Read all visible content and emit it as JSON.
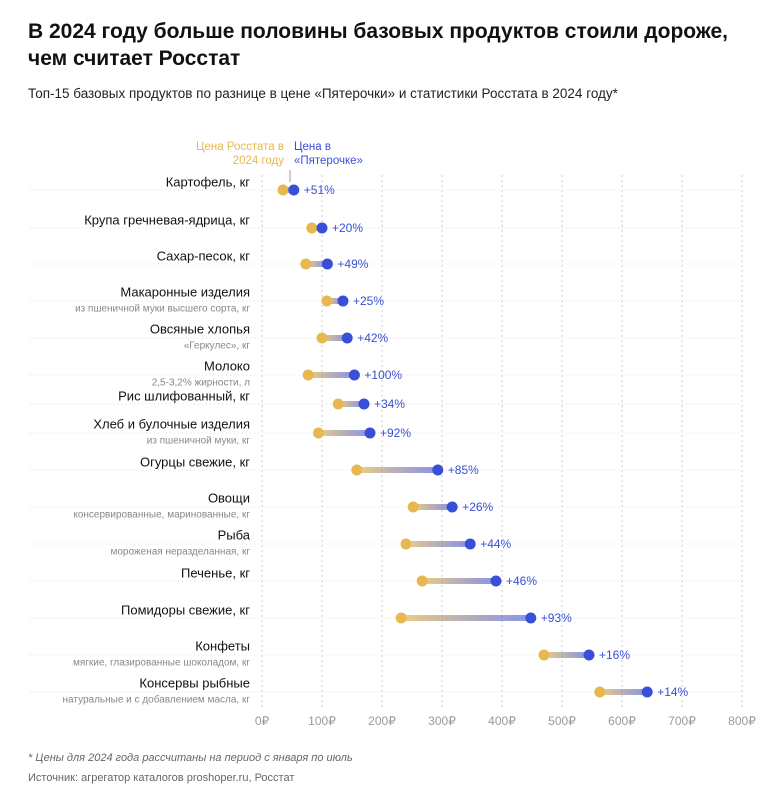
{
  "chart_data": {
    "type": "dumbbell",
    "title": "В 2024 году больше половины базовых продуктов стоили дороже, чем считает Росстат",
    "subtitle": "Топ-15 базовых продуктов по разнице в цене «Пятерочки» и статистики Росстата в 2024 году*",
    "categories": [
      "Картофель, кг",
      "Крупа гречневая-ядрица, кг",
      "Сахар-песок, кг",
      "Макаронные изделия",
      "Овсяные хлопья",
      "Молоко",
      "Рис шлифованный, кг",
      "Хлеб и булочные изделия",
      "Огурцы свежие, кг",
      "Овощи",
      "Рыба",
      "Печенье, кг",
      "Помидоры свежие, кг",
      "Конфеты",
      "Консервы рыбные"
    ],
    "subcategories": [
      null,
      null,
      null,
      "из пшеничной муки высшего сорта, кг",
      "«Геркулес», кг",
      "2,5-3,2% жирности, л",
      null,
      "из пшеничной муки, кг",
      null,
      "консервированные, маринованные, кг",
      "мороженая неразделанная, кг",
      null,
      null,
      "мягкие, глазированные шоколадом, кг",
      "натуральные и с добавлением масла, кг"
    ],
    "series": [
      {
        "name": "Цена Росстата в 2024 году",
        "color": "#e6b84f",
        "values": [
          35,
          83,
          73,
          108,
          100,
          77,
          127,
          94,
          158,
          252,
          240,
          267,
          232,
          470,
          563
        ]
      },
      {
        "name": "Цена в «Пятерочке»",
        "color": "#3a4fd8",
        "values": [
          53,
          100,
          109,
          135,
          142,
          154,
          170,
          180,
          293,
          317,
          347,
          390,
          448,
          545,
          642
        ]
      }
    ],
    "diff_labels": [
      "+51%",
      "+20%",
      "+49%",
      "+25%",
      "+42%",
      "+100%",
      "+34%",
      "+92%",
      "+85%",
      "+26%",
      "+44%",
      "+46%",
      "+93%",
      "+16%",
      "+14%"
    ],
    "xlim": [
      0,
      800
    ],
    "xticks": [
      {
        "value": 0,
        "label": "0₽"
      },
      {
        "value": 100,
        "label": "100₽"
      },
      {
        "value": 200,
        "label": "200₽"
      },
      {
        "value": 300,
        "label": "300₽"
      },
      {
        "value": 400,
        "label": "400₽"
      },
      {
        "value": 500,
        "label": "500₽"
      },
      {
        "value": 600,
        "label": "600₽"
      },
      {
        "value": 700,
        "label": "700₽"
      },
      {
        "value": 800,
        "label": "800₽"
      }
    ],
    "grid": true,
    "footnote": "* Цены для 2024 года рассчитаны на период с января по июль",
    "source": "Источник: агрегатор каталогов proshoper.ru, Росстат"
  }
}
